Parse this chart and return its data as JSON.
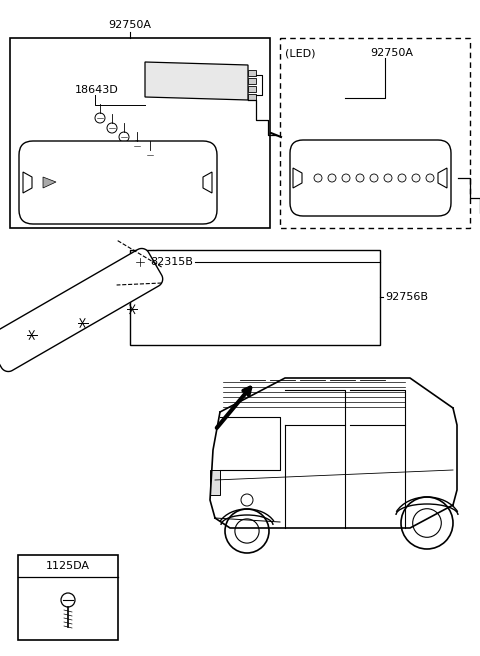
{
  "background_color": "#ffffff",
  "line_color": "#000000",
  "labels": {
    "92750A_top": "92750A",
    "18643D": "18643D",
    "LED": "(LED)",
    "92750A_led": "92750A",
    "82315B": "82315B",
    "92756B": "92756B",
    "1125DA": "1125DA"
  }
}
